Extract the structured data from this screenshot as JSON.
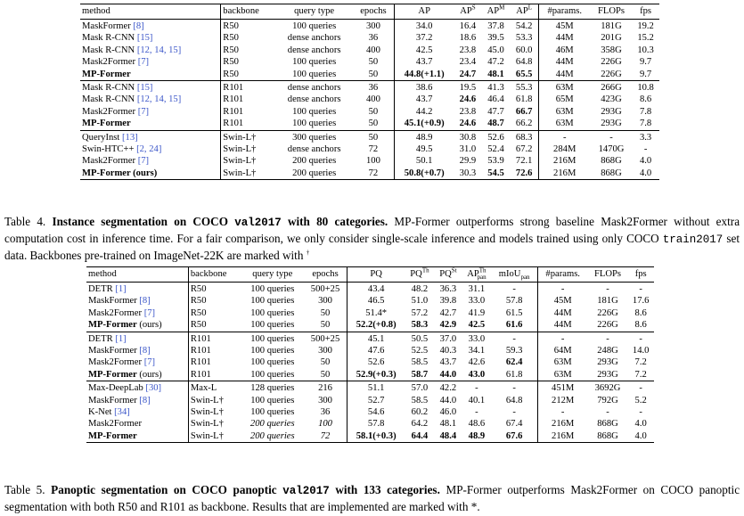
{
  "table4": {
    "headers": [
      "method",
      "backbone",
      "query type",
      "epochs",
      "AP",
      "AP^S",
      "AP^M",
      "AP^L",
      "#params.",
      "FLOPs",
      "fps"
    ],
    "groups": [
      [
        {
          "method": "MaskFormer ",
          "cite": "[8]",
          "backbone": "R50",
          "query": "100 queries",
          "epochs": "300",
          "ap": "34.0",
          "aps": "16.4",
          "apm": "37.8",
          "apl": "54.2",
          "params": "45M",
          "flops": "181G",
          "fps": "19.2"
        },
        {
          "method": "Mask R-CNN ",
          "cite": "[15]",
          "backbone": "R50",
          "query": "dense anchors",
          "epochs": "36",
          "ap": "37.2",
          "aps": "18.6",
          "apm": "39.5",
          "apl": "53.3",
          "params": "44M",
          "flops": "201G",
          "fps": "15.2"
        },
        {
          "method": "Mask R-CNN ",
          "cite": "[12, 14, 15]",
          "backbone": "R50",
          "query": "dense anchors",
          "epochs": "400",
          "ap": "42.5",
          "aps": "23.8",
          "apm": "45.0",
          "apl": "60.0",
          "params": "46M",
          "flops": "358G",
          "fps": "10.3"
        },
        {
          "method": "Mask2Former ",
          "cite": "[7]",
          "backbone": "R50",
          "query": "100 queries",
          "epochs": "50",
          "ap": "43.7",
          "aps": "23.4",
          "apm": "47.2",
          "apl": "64.8",
          "params": "44M",
          "flops": "226G",
          "fps": "9.7"
        },
        {
          "method": "MP-Former",
          "cite": "",
          "backbone": "R50",
          "query": "100 queries",
          "epochs": "50",
          "ap": "44.8(+1.1)",
          "aps": "24.7",
          "apm": "48.1",
          "apl": "65.5",
          "params": "44M",
          "flops": "226G",
          "fps": "9.7",
          "bold": [
            "method",
            "ap",
            "aps",
            "apm",
            "apl"
          ]
        }
      ],
      [
        {
          "method": "Mask R-CNN ",
          "cite": "[15]",
          "backbone": "R101",
          "query": "dense anchors",
          "epochs": "36",
          "ap": "38.6",
          "aps": "19.5",
          "apm": "41.3",
          "apl": "55.3",
          "params": "63M",
          "flops": "266G",
          "fps": "10.8"
        },
        {
          "method": "Mask R-CNN ",
          "cite": "[12, 14, 15]",
          "backbone": "R101",
          "query": "dense anchors",
          "epochs": "400",
          "ap": "43.7",
          "aps": "24.6",
          "apm": "46.4",
          "apl": "61.8",
          "params": "65M",
          "flops": "423G",
          "fps": "8.6",
          "bold": [
            "aps"
          ]
        },
        {
          "method": "Mask2Former ",
          "cite": "[7]",
          "backbone": "R101",
          "query": "100 queries",
          "epochs": "50",
          "ap": "44.2",
          "aps": "23.8",
          "apm": "47.7",
          "apl": "66.7",
          "params": "63M",
          "flops": "293G",
          "fps": "7.8",
          "bold": [
            "apl"
          ]
        },
        {
          "method": "MP-Former",
          "cite": "",
          "backbone": "R101",
          "query": "100 queries",
          "epochs": "50",
          "ap": "45.1(+0.9)",
          "aps": "24.6",
          "apm": "48.7",
          "apl": "66.2",
          "params": "63M",
          "flops": "293G",
          "fps": "7.8",
          "bold": [
            "method",
            "ap",
            "aps",
            "apm"
          ]
        }
      ],
      [
        {
          "method": "QueryInst ",
          "cite": "[13]",
          "backbone": "Swin-L†",
          "query": "300 queries",
          "epochs": "50",
          "ap": "48.9",
          "aps": "30.8",
          "apm": "52.6",
          "apl": "68.3",
          "params": "-",
          "flops": "-",
          "fps": "3.3"
        },
        {
          "method": "Swin-HTC++ ",
          "cite": "[2, 24]",
          "backbone": "Swin-L†",
          "query": "dense anchors",
          "epochs": "72",
          "ap": "49.5",
          "aps": "31.0",
          "apm": "52.4",
          "apl": "67.2",
          "params": "284M",
          "flops": "1470G",
          "fps": "-"
        },
        {
          "method": "Mask2Former ",
          "cite": "[7]",
          "backbone": "Swin-L†",
          "query": "200 queries",
          "epochs": "100",
          "ap": "50.1",
          "aps": "29.9",
          "apm": "53.9",
          "apl": "72.1",
          "params": "216M",
          "flops": "868G",
          "fps": "4.0"
        },
        {
          "method": "MP-Former (ours)",
          "cite": "",
          "backbone": "Swin-L†",
          "query": "200 queries",
          "epochs": "72",
          "ap": "50.8(+0.7)",
          "aps": "30.3",
          "apm": "54.5",
          "apl": "72.6",
          "params": "216M",
          "flops": "868G",
          "fps": "4.0",
          "bold": [
            "method",
            "ap",
            "apm",
            "apl"
          ]
        }
      ]
    ]
  },
  "caption4": {
    "label": "Table 4.",
    "bold_text": "Instance segmentation on COCO",
    "code": "val2017",
    "bold_tail": "with 80 categories.",
    "text1": "MP-Former outperforms strong baseline Mask2Former without extra computation cost in inference time. For a fair comparison, we only consider single-scale inference and models trained using only COCO",
    "code2": "train2017",
    "text2": "set data. Backbones pre-trained on ImageNet-22K are marked with",
    "dagger": "†"
  },
  "table5": {
    "headers": [
      "method",
      "backbone",
      "query type",
      "epochs",
      "PQ",
      "PQ^Th",
      "PQ^St",
      "AP^Th_pan",
      "mIoU_pan",
      "#params.",
      "FLOPs",
      "fps"
    ],
    "groups": [
      [
        {
          "method": "DETR ",
          "cite": "[1]",
          "backbone": "R50",
          "query": "100 queries",
          "epochs": "500+25",
          "pq": "43.4",
          "pqth": "48.2",
          "pqst": "36.3",
          "ap": "31.1",
          "miou": "-",
          "params": "-",
          "flops": "-",
          "fps": "-"
        },
        {
          "method": "MaskFormer ",
          "cite": "[8]",
          "backbone": "R50",
          "query": "100 queries",
          "epochs": "300",
          "pq": "46.5",
          "pqth": "51.0",
          "pqst": "39.8",
          "ap": "33.0",
          "miou": "57.8",
          "params": "45M",
          "flops": "181G",
          "fps": "17.6"
        },
        {
          "method": "Mask2Former ",
          "cite": "[7]",
          "backbone": "R50",
          "query": "100 queries",
          "epochs": "50",
          "pq": "51.4*",
          "pqth": "57.2",
          "pqst": "42.7",
          "ap": "41.9",
          "miou": "61.5",
          "params": "44M",
          "flops": "226G",
          "fps": "8.6"
        },
        {
          "method": "MP-Former",
          "suffix": " (ours)",
          "cite": "",
          "backbone": "R50",
          "query": "100 queries",
          "epochs": "50",
          "pq": "52.2(+0.8)",
          "pqth": "58.3",
          "pqst": "42.9",
          "ap": "42.5",
          "miou": "61.6",
          "params": "44M",
          "flops": "226G",
          "fps": "8.6",
          "bold": [
            "method",
            "pq",
            "pqth",
            "pqst",
            "ap",
            "miou"
          ]
        }
      ],
      [
        {
          "method": "DETR ",
          "cite": "[1]",
          "backbone": "R101",
          "query": "100 queries",
          "epochs": "500+25",
          "pq": "45.1",
          "pqth": "50.5",
          "pqst": "37.0",
          "ap": "33.0",
          "miou": "-",
          "params": "-",
          "flops": "-",
          "fps": "-"
        },
        {
          "method": "MaskFormer ",
          "cite": "[8]",
          "backbone": "R101",
          "query": "100 queries",
          "epochs": "300",
          "pq": "47.6",
          "pqth": "52.5",
          "pqst": "40.3",
          "ap": "34.1",
          "miou": "59.3",
          "params": "64M",
          "flops": "248G",
          "fps": "14.0"
        },
        {
          "method": "Mask2Former ",
          "cite": "[7]",
          "backbone": "R101",
          "query": "100 queries",
          "epochs": "50",
          "pq": "52.6",
          "pqth": "58.5",
          "pqst": "43.7",
          "ap": "42.6",
          "miou": "62.4",
          "params": "63M",
          "flops": "293G",
          "fps": "7.2",
          "bold": [
            "miou"
          ]
        },
        {
          "method": "MP-Former",
          "suffix": " (ours)",
          "cite": "",
          "backbone": "R101",
          "query": "100 queries",
          "epochs": "50",
          "pq": "52.9(+0.3)",
          "pqth": "58.7",
          "pqst": "44.0",
          "ap": "43.0",
          "miou": "61.8",
          "params": "63M",
          "flops": "293G",
          "fps": "7.2",
          "bold": [
            "method",
            "pq",
            "pqth",
            "pqst",
            "ap"
          ]
        }
      ],
      [
        {
          "method": "Max-DeepLab ",
          "cite": "[30]",
          "backbone": "Max-L",
          "query": "128 queries",
          "epochs": "216",
          "pq": "51.1",
          "pqth": "57.0",
          "pqst": "42.2",
          "ap": "-",
          "miou": "-",
          "params": "451M",
          "flops": "3692G",
          "fps": "-"
        },
        {
          "method": "MaskFormer ",
          "cite": "[8]",
          "backbone": "Swin-L†",
          "query": "100 queries",
          "epochs": "300",
          "pq": "52.7",
          "pqth": "58.5",
          "pqst": "44.0",
          "ap": "40.1",
          "miou": "64.8",
          "params": "212M",
          "flops": "792G",
          "fps": "5.2"
        },
        {
          "method": "K-Net ",
          "cite": "[34]",
          "backbone": "Swin-L†",
          "query": "100 queries",
          "epochs": "36",
          "pq": "54.6",
          "pqth": "60.2",
          "pqst": "46.0",
          "ap": "-",
          "miou": "-",
          "params": "-",
          "flops": "-",
          "fps": "-"
        },
        {
          "method": "Mask2Former",
          "cite": "",
          "backbone": "Swin-L†",
          "query": "200 queries",
          "epochs": "100",
          "pq": "57.8",
          "pqth": "64.2",
          "pqst": "48.1",
          "ap": "48.6",
          "miou": "67.4",
          "params": "216M",
          "flops": "868G",
          "fps": "4.0",
          "italic": [
            "query",
            "epochs"
          ]
        },
        {
          "method": "MP-Former",
          "cite": "",
          "backbone": "Swin-L†",
          "query": "200 queries",
          "epochs": "72",
          "pq": "58.1(+0.3)",
          "pqth": "64.4",
          "pqst": "48.4",
          "ap": "48.9",
          "miou": "67.6",
          "params": "216M",
          "flops": "868G",
          "fps": "4.0",
          "bold": [
            "method",
            "pq",
            "pqth",
            "pqst",
            "ap",
            "miou"
          ],
          "italic": [
            "query",
            "epochs"
          ]
        }
      ]
    ]
  },
  "caption5": {
    "label": "Table 5.",
    "bold_text": "Panoptic segmentation on COCO panoptic",
    "code": "val2017",
    "bold_tail": "with 133 categories.",
    "text1": "MP-Former outperforms Mask2Former on COCO panoptic segmentation with both R50 and R101 as backbone. Results that are implemented are marked with",
    "star": "*."
  }
}
